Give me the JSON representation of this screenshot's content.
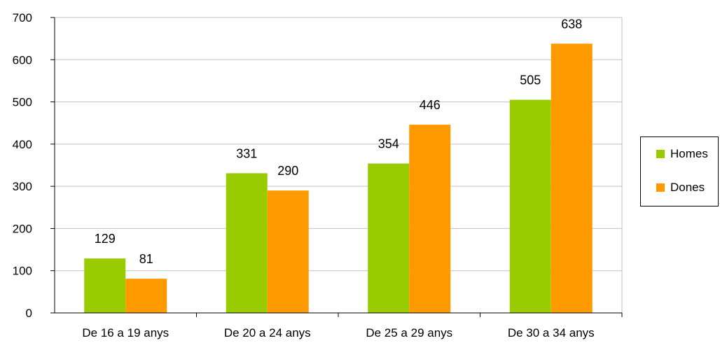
{
  "chart_data": {
    "type": "bar",
    "categories": [
      "De 16 a 19 anys",
      "De 20 a 24 anys",
      "De 25 a 29 anys",
      "De 30 a 34 anys"
    ],
    "series": [
      {
        "name": "Homes",
        "color": "#99cc00",
        "values": [
          129,
          331,
          354,
          505
        ]
      },
      {
        "name": "Dones",
        "color": "#ff9900",
        "values": [
          81,
          290,
          446,
          638
        ]
      }
    ],
    "y_ticks": [
      "0",
      "100",
      "200",
      "300",
      "400",
      "500",
      "600",
      "700"
    ],
    "ylim": [
      0,
      700
    ],
    "grid": true,
    "legend_position": "right",
    "data_labels": [
      [
        "129",
        "331",
        "354",
        "505"
      ],
      [
        "81",
        "290",
        "446",
        "638"
      ]
    ]
  }
}
